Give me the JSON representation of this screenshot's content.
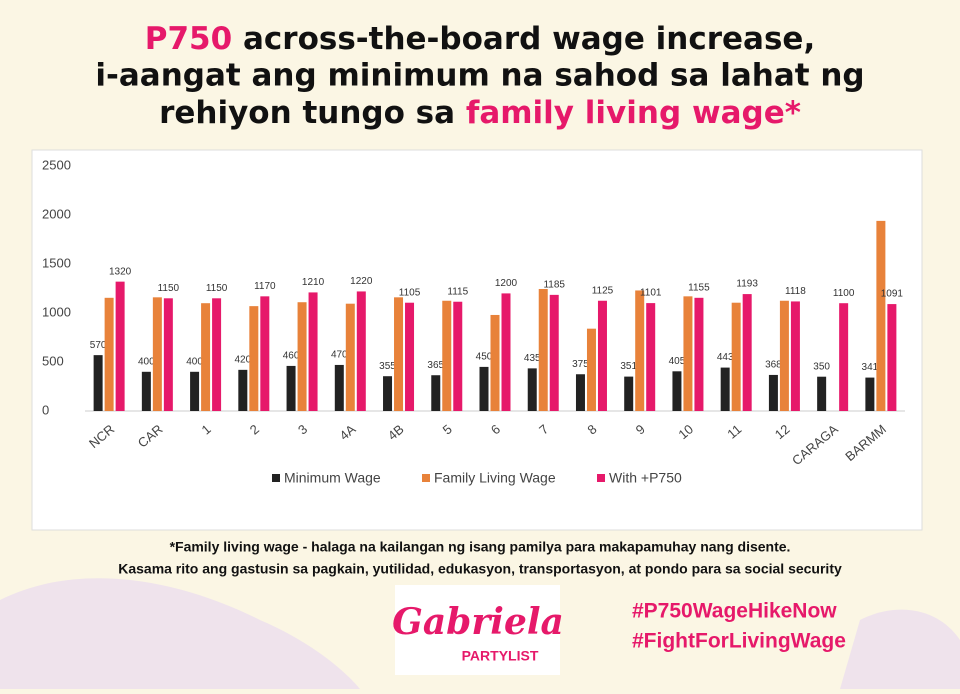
{
  "header": {
    "title_parts": [
      "P750",
      " across-the-board wage increase,",
      "i-aangat ang minimum na sahod sa lahat ng",
      "rehiyon tungo sa ",
      "family living wage",
      "*"
    ]
  },
  "chart_data": {
    "type": "bar",
    "categories": [
      "NCR",
      "CAR",
      "1",
      "2",
      "3",
      "4A",
      "4B",
      "5",
      "6",
      "7",
      "8",
      "9",
      "10",
      "11",
      "12",
      "CARAGA",
      "BARMM"
    ],
    "series": [
      {
        "name": "Minimum Wage",
        "color": "#222222",
        "show_labels": true,
        "values": [
          570,
          400,
          400,
          420,
          460,
          470,
          355,
          365,
          450,
          435,
          375,
          351,
          405,
          443,
          368,
          350,
          341
        ]
      },
      {
        "name": "Family Living Wage",
        "color": "#e8823a",
        "show_labels": false,
        "values": [
          1155,
          1160,
          1100,
          1070,
          1110,
          1095,
          1160,
          1125,
          980,
          1245,
          840,
          1230,
          1170,
          1105,
          1125,
          null,
          1940
        ]
      },
      {
        "name": "With +P750",
        "color": "#e6196a",
        "show_labels": true,
        "values": [
          1320,
          1150,
          1150,
          1170,
          1210,
          1220,
          1105,
          1115,
          1200,
          1185,
          1125,
          1101,
          1155,
          1193,
          1118,
          1100,
          1091
        ]
      }
    ],
    "ylim": [
      0,
      2500
    ],
    "yticks": [
      0,
      500,
      1000,
      1500,
      2000,
      2500
    ],
    "grid": false,
    "legend": "bottom"
  },
  "footnote": [
    "*Family living wage - halaga na kailangan ng isang pamilya para makapamuhay nang disente.",
    "Kasama  rito ang gastusin sa pagkain, yutilidad, edukasyon, transportasyon, at pondo para sa social security"
  ],
  "logo": {
    "name": "Gabriela",
    "sub": "PARTYLIST"
  },
  "hashtags": [
    "#P750WageHikeNow",
    "#FightForLivingWage"
  ]
}
